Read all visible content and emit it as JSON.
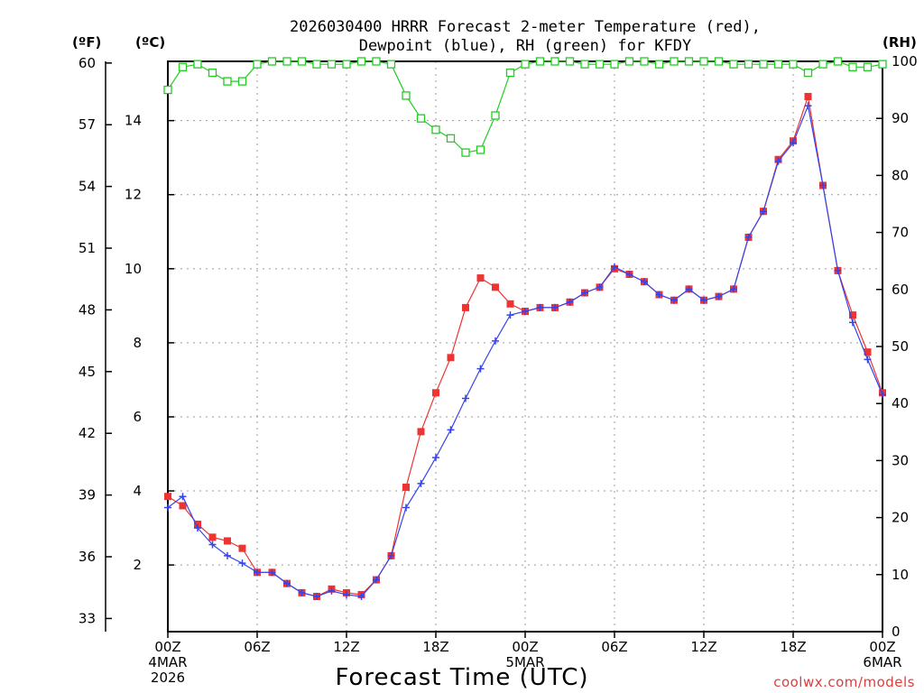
{
  "title_line1": "2026030400 HRRR Forecast 2-meter Temperature (red),",
  "title_line2": "Dewpoint (blue), RH (green) for KFDY",
  "units": {
    "f": "(ºF)",
    "c": "(ºC)",
    "rh": "(RH)"
  },
  "credit": "coolwx.com/models",
  "colors": {
    "temperature": "#ee3333",
    "dewpoint": "#3344ee",
    "rh": "#22cc22"
  },
  "chart_data": {
    "type": "line",
    "title": "2026030400 HRRR Forecast 2-meter Temperature (red), Dewpoint (blue), RH (green) for KFDY",
    "xlabel": "Forecast Time (UTC)",
    "x_unit": "forecast hour",
    "xlim": [
      0,
      48
    ],
    "x_ticks": [
      {
        "x": 0,
        "lines": [
          "00Z",
          "4MAR",
          "2026"
        ]
      },
      {
        "x": 6,
        "lines": [
          "06Z"
        ]
      },
      {
        "x": 12,
        "lines": [
          "12Z"
        ]
      },
      {
        "x": 18,
        "lines": [
          "18Z"
        ]
      },
      {
        "x": 24,
        "lines": [
          "00Z",
          "5MAR"
        ]
      },
      {
        "x": 30,
        "lines": [
          "06Z"
        ]
      },
      {
        "x": 36,
        "lines": [
          "12Z"
        ]
      },
      {
        "x": 42,
        "lines": [
          "18Z"
        ]
      },
      {
        "x": 48,
        "lines": [
          "00Z",
          "6MAR"
        ]
      }
    ],
    "y_celsius": {
      "label": "(ºC)",
      "lim": [
        0.2,
        15.6
      ],
      "ticks": [
        "2",
        "4",
        "6",
        "8",
        "10",
        "12",
        "14"
      ]
    },
    "y_fahrenheit": {
      "label": "(ºF)",
      "ticks": [
        "33",
        "36",
        "39",
        "42",
        "45",
        "48",
        "51",
        "54",
        "57",
        "60"
      ]
    },
    "y_rh": {
      "label": "(RH)",
      "lim": [
        0,
        100
      ],
      "ticks": [
        "0",
        "10",
        "20",
        "30",
        "40",
        "50",
        "60",
        "70",
        "80",
        "90",
        "100"
      ]
    },
    "series": [
      {
        "name": "Temperature",
        "unit": "°C",
        "axis": "celsius",
        "marker": "square",
        "color": "#ee3333",
        "values": [
          3.85,
          3.6,
          3.1,
          2.75,
          2.65,
          2.45,
          1.8,
          1.8,
          1.5,
          1.25,
          1.15,
          1.35,
          1.25,
          1.2,
          1.6,
          2.25,
          4.1,
          5.6,
          6.65,
          7.6,
          8.95,
          9.75,
          9.5,
          9.05,
          8.85,
          8.95,
          8.95,
          9.1,
          9.35,
          9.5,
          10.0,
          9.85,
          9.65,
          9.3,
          9.15,
          9.45,
          9.15,
          9.25,
          9.45,
          10.85,
          11.55,
          12.95,
          13.45,
          14.65,
          12.25,
          9.95,
          8.75,
          7.75,
          6.65
        ]
      },
      {
        "name": "Dewpoint",
        "unit": "°C",
        "axis": "celsius",
        "marker": "plus",
        "color": "#3344ee",
        "values": [
          3.55,
          3.85,
          3.0,
          2.55,
          2.25,
          2.05,
          1.8,
          1.8,
          1.5,
          1.25,
          1.15,
          1.3,
          1.2,
          1.15,
          1.6,
          2.25,
          3.55,
          4.2,
          4.9,
          5.65,
          6.5,
          7.3,
          8.05,
          8.75,
          8.85,
          8.95,
          8.95,
          9.1,
          9.35,
          9.5,
          10.05,
          9.85,
          9.65,
          9.3,
          9.15,
          9.45,
          9.15,
          9.25,
          9.45,
          10.85,
          11.55,
          12.9,
          13.4,
          14.4,
          12.25,
          9.95,
          8.55,
          7.55,
          6.6
        ]
      },
      {
        "name": "RH",
        "unit": "%",
        "axis": "rh",
        "marker": "open-square",
        "color": "#22cc22",
        "values": [
          95,
          99,
          99.5,
          98,
          96.5,
          96.5,
          99.5,
          100,
          100,
          100,
          99.5,
          99.5,
          99.5,
          100,
          100,
          99.5,
          94,
          90,
          88,
          86.5,
          84,
          84.5,
          90.5,
          98,
          99.5,
          100,
          100,
          100,
          99.5,
          99.5,
          99.5,
          100,
          100,
          99.5,
          100,
          100,
          100,
          100,
          99.5,
          99.5,
          99.5,
          99.5,
          99.5,
          98,
          99.5,
          100,
          99,
          99,
          99.5
        ]
      }
    ]
  }
}
